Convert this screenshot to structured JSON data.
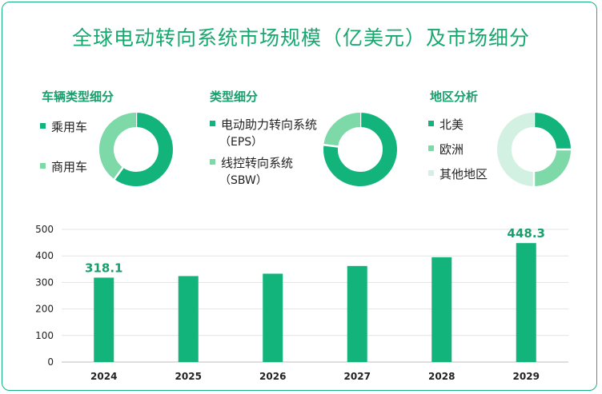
{
  "title": "全球电动转向系统市场规模（亿美元）及市场细分",
  "colors": {
    "primary": "#12b47c",
    "secondary": "#7dd9a8",
    "tertiary": "#d3f1e2",
    "title_text": "#16a86f"
  },
  "segments": [
    {
      "title": "车辆类型细分",
      "items": [
        {
          "label": "乘用车",
          "value": 60,
          "color": "#12b47c"
        },
        {
          "label": "商用车",
          "value": 40,
          "color": "#7dd9a8"
        }
      ]
    },
    {
      "title": "类型细分",
      "items": [
        {
          "label": "电动助力转向系统",
          "sublabel": "（EPS）",
          "value": 77,
          "color": "#12b47c"
        },
        {
          "label": "线控转向系统",
          "sublabel": "（SBW）",
          "value": 23,
          "color": "#7dd9a8"
        }
      ]
    },
    {
      "title": "地区分析",
      "items": [
        {
          "label": "北美",
          "value": 25,
          "color": "#12b47c"
        },
        {
          "label": "欧洲",
          "value": 25,
          "color": "#7dd9a8"
        },
        {
          "label": "其他地区",
          "value": 50,
          "color": "#d3f1e2"
        }
      ]
    }
  ],
  "chart_data": {
    "type": "bar",
    "title": "全球电动转向系统市场规模（亿美元）",
    "categories": [
      "2024",
      "2025",
      "2026",
      "2027",
      "2028",
      "2029"
    ],
    "values": [
      318.1,
      324,
      333,
      362,
      395,
      448.3
    ],
    "data_labels": {
      "2024": "318.1",
      "2029": "448.3"
    },
    "ylim": [
      0,
      500
    ],
    "yticks": [
      "0",
      "100",
      "200",
      "300",
      "400",
      "500"
    ],
    "grid": true,
    "bar_color": "#12b47c",
    "label_color": "#17a06c"
  }
}
